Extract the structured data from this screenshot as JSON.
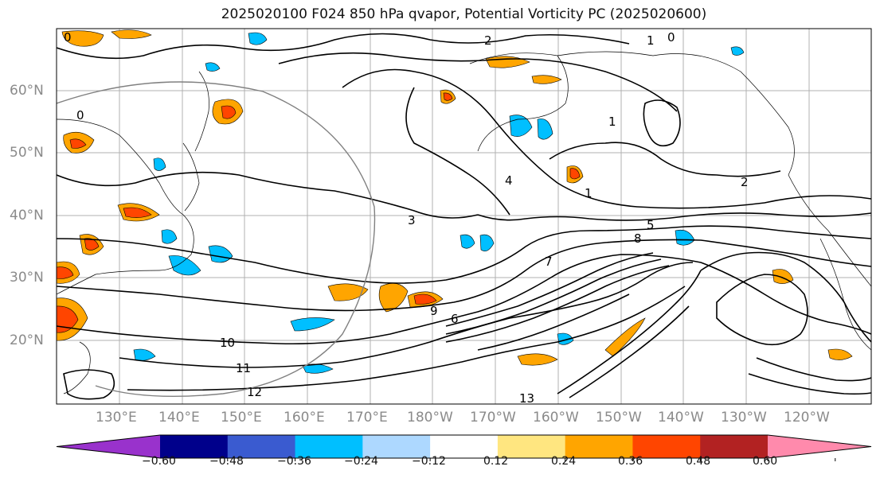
{
  "title": "2025020100 F024 850 hPa qvapor, Potential Vorticity PC (2025020600)",
  "latitude_labels": [
    "60°N",
    "50°N",
    "40°N",
    "30°N",
    "20°N"
  ],
  "longitude_labels": [
    "130°E",
    "140°E",
    "150°E",
    "160°E",
    "170°E",
    "180°W",
    "170°W",
    "160°W",
    "150°W",
    "140°W",
    "130°W",
    "120°W"
  ],
  "contour_labels": [
    "0",
    "0",
    "1",
    "2",
    "1",
    "0",
    "1",
    "2",
    "3",
    "4",
    "5",
    "7",
    "8",
    "9",
    "10",
    "11",
    "12",
    "13",
    "6"
  ],
  "colorbar": {
    "ticks": [
      "−0.60",
      "−0.48",
      "−0.36",
      "−0.24",
      "−0.12",
      "0.12",
      "0.24",
      "0.36",
      "0.48",
      "0.60"
    ],
    "colors": [
      "#9932cc",
      "#00008b",
      "#3a5bd0",
      "#00bfff",
      "#add8ff",
      "#ffffff",
      "#ffe680",
      "#ffa500",
      "#ff4500",
      "#b22222",
      "#ff8aac"
    ],
    "extend": "both"
  },
  "colors": {
    "negative_fill": "#00bfff",
    "positive_fill": "#ffa500",
    "strong_positive": "#ff4500",
    "contour": "#000000",
    "grid": "#b0b0b0",
    "coast": "#000000"
  }
}
